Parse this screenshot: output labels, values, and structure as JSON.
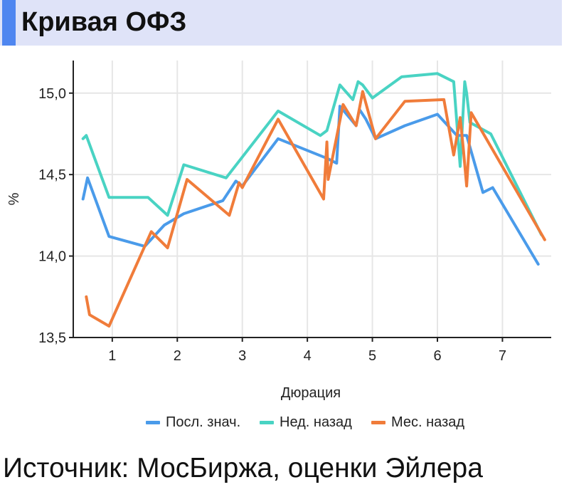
{
  "header": {
    "title": "Кривая ОФЗ"
  },
  "source_note": "Источник: МосБиржа, оценки Эйлера",
  "chart_data": {
    "type": "line",
    "title": "",
    "xlabel": "Дюрация",
    "ylabel": "%",
    "xlim": [
      0.4,
      7.75
    ],
    "ylim": [
      13.5,
      15.2
    ],
    "xticks": [
      1,
      2,
      3,
      4,
      5,
      6,
      7
    ],
    "xtick_labels": [
      "1",
      "2",
      "3",
      "4",
      "5",
      "6",
      "7"
    ],
    "yticks": [
      13.5,
      14.0,
      14.5,
      15.0
    ],
    "ytick_labels": [
      "13,5",
      "14,0",
      "14,5",
      "15,0"
    ],
    "grid": true,
    "legend_position": "bottom",
    "series": [
      {
        "name": "Посл. знач.",
        "color": "#4a9bea",
        "points": [
          [
            0.55,
            14.35
          ],
          [
            0.62,
            14.48
          ],
          [
            0.95,
            14.12
          ],
          [
            1.5,
            14.06
          ],
          [
            1.8,
            14.19
          ],
          [
            2.1,
            14.26
          ],
          [
            2.7,
            14.34
          ],
          [
            2.9,
            14.46
          ],
          [
            3.0,
            14.43
          ],
          [
            3.55,
            14.72
          ],
          [
            4.3,
            14.6
          ],
          [
            4.45,
            14.57
          ],
          [
            4.5,
            14.92
          ],
          [
            4.75,
            14.8
          ],
          [
            4.8,
            14.9
          ],
          [
            4.9,
            14.84
          ],
          [
            5.05,
            14.72
          ],
          [
            5.5,
            14.8
          ],
          [
            6.0,
            14.87
          ],
          [
            6.3,
            14.74
          ],
          [
            6.45,
            14.74
          ],
          [
            6.7,
            14.39
          ],
          [
            6.85,
            14.42
          ],
          [
            7.55,
            13.95
          ]
        ]
      },
      {
        "name": "Нед. назад",
        "color": "#49d3c3",
        "points": [
          [
            0.55,
            14.72
          ],
          [
            0.6,
            14.74
          ],
          [
            0.95,
            14.36
          ],
          [
            1.55,
            14.36
          ],
          [
            1.85,
            14.25
          ],
          [
            2.1,
            14.56
          ],
          [
            2.75,
            14.48
          ],
          [
            3.55,
            14.89
          ],
          [
            4.2,
            14.74
          ],
          [
            4.3,
            14.77
          ],
          [
            4.5,
            15.05
          ],
          [
            4.7,
            14.96
          ],
          [
            4.78,
            15.07
          ],
          [
            4.85,
            15.05
          ],
          [
            5.0,
            14.97
          ],
          [
            5.45,
            15.1
          ],
          [
            6.0,
            15.12
          ],
          [
            6.25,
            15.07
          ],
          [
            6.35,
            14.55
          ],
          [
            6.42,
            15.07
          ],
          [
            6.45,
            15.0
          ],
          [
            6.5,
            14.82
          ],
          [
            6.82,
            14.75
          ],
          [
            7.6,
            14.13
          ]
        ]
      },
      {
        "name": "Мес. назад",
        "color": "#f07c3a",
        "points": [
          [
            0.6,
            13.75
          ],
          [
            0.65,
            13.64
          ],
          [
            0.95,
            13.57
          ],
          [
            1.6,
            14.15
          ],
          [
            1.85,
            14.05
          ],
          [
            2.15,
            14.47
          ],
          [
            2.8,
            14.25
          ],
          [
            2.95,
            14.45
          ],
          [
            3.0,
            14.42
          ],
          [
            3.55,
            14.84
          ],
          [
            4.25,
            14.35
          ],
          [
            4.3,
            14.7
          ],
          [
            4.32,
            14.47
          ],
          [
            4.55,
            14.93
          ],
          [
            4.75,
            14.8
          ],
          [
            4.85,
            15.01
          ],
          [
            5.05,
            14.72
          ],
          [
            5.5,
            14.95
          ],
          [
            6.1,
            14.96
          ],
          [
            6.25,
            14.62
          ],
          [
            6.35,
            14.85
          ],
          [
            6.4,
            14.65
          ],
          [
            6.45,
            14.43
          ],
          [
            6.52,
            14.88
          ],
          [
            7.65,
            14.1
          ]
        ]
      }
    ]
  }
}
